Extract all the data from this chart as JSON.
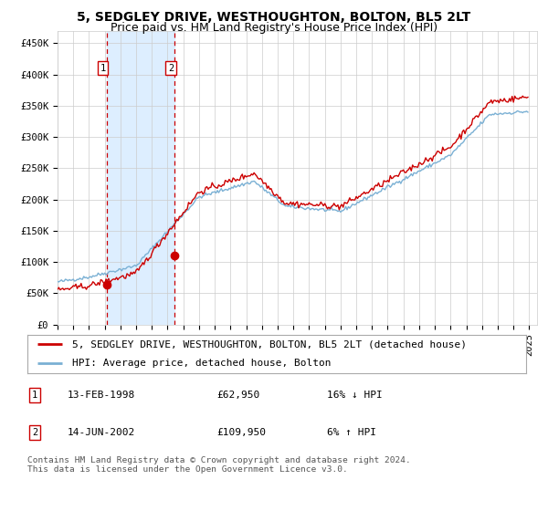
{
  "title": "5, SEDGLEY DRIVE, WESTHOUGHTON, BOLTON, BL5 2LT",
  "subtitle": "Price paid vs. HM Land Registry's House Price Index (HPI)",
  "sale1_label": "13-FEB-1998",
  "sale1_price": 62950,
  "sale1_hpi_diff": "16% ↓ HPI",
  "sale2_label": "14-JUN-2002",
  "sale2_price": 109950,
  "sale2_hpi_diff": "6% ↑ HPI",
  "yticks": [
    0,
    50000,
    100000,
    150000,
    200000,
    250000,
    300000,
    350000,
    400000,
    450000
  ],
  "ytick_labels": [
    "£0",
    "£50K",
    "£100K",
    "£150K",
    "£200K",
    "£250K",
    "£300K",
    "£350K",
    "£400K",
    "£450K"
  ],
  "xlim_start": 1995.0,
  "xlim_end": 2025.5,
  "ylim_min": 0,
  "ylim_max": 470000,
  "red_line_color": "#cc0000",
  "blue_line_color": "#7ab0d4",
  "shade_color": "#ddeeff",
  "dashed_line_color": "#cc0000",
  "marker_color": "#cc0000",
  "grid_color": "#cccccc",
  "bg_color": "#ffffff",
  "legend_label1": "5, SEDGLEY DRIVE, WESTHOUGHTON, BOLTON, BL5 2LT (detached house)",
  "legend_label2": "HPI: Average price, detached house, Bolton",
  "footer": "Contains HM Land Registry data © Crown copyright and database right 2024.\nThis data is licensed under the Open Government Licence v3.0.",
  "title_fontsize": 10,
  "subtitle_fontsize": 9,
  "axis_fontsize": 7.5,
  "legend_fontsize": 8,
  "footer_fontsize": 6.8,
  "sale1_year_dec": 1998.12,
  "sale2_year_dec": 2002.45
}
